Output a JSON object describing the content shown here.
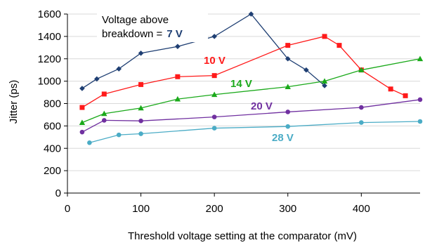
{
  "chart_data": {
    "type": "line",
    "xlabel": "Threshold voltage setting at the comparator (mV)",
    "ylabel": "Jitter (ps)",
    "xlim": [
      0,
      480
    ],
    "ylim": [
      0,
      1600
    ],
    "x_ticks": [
      "0",
      "100",
      "200",
      "300",
      "400"
    ],
    "y_ticks": [
      "0",
      "200",
      "400",
      "600",
      "800",
      "1000",
      "1200",
      "1400",
      "1600"
    ],
    "grid": true,
    "legend": {
      "line1": "Voltage above",
      "line2": "breakdown =",
      "line2_value": "7 V"
    },
    "series": [
      {
        "name": "7 V",
        "label": "7 V",
        "color": "#1f3f73",
        "marker": "diamond",
        "x": [
          20,
          40,
          70,
          100,
          150,
          200,
          250,
          300,
          325,
          350
        ],
        "y": [
          935,
          1020,
          1110,
          1250,
          1310,
          1400,
          1600,
          1200,
          1100,
          960
        ]
      },
      {
        "name": "10 V",
        "label": "10 V",
        "color": "#ff1a1a",
        "marker": "square",
        "x": [
          20,
          50,
          100,
          150,
          200,
          300,
          350,
          370,
          400,
          440,
          460
        ],
        "y": [
          765,
          885,
          970,
          1040,
          1050,
          1320,
          1400,
          1320,
          1100,
          930,
          870
        ]
      },
      {
        "name": "14 V",
        "label": "14 V",
        "color": "#1aa91a",
        "marker": "triangle",
        "x": [
          20,
          50,
          100,
          150,
          200,
          300,
          350,
          400,
          480
        ],
        "y": [
          630,
          710,
          760,
          840,
          880,
          950,
          1000,
          1100,
          1200
        ]
      },
      {
        "name": "20 V",
        "label": "20 V",
        "color": "#7030a0",
        "marker": "circle",
        "x": [
          20,
          50,
          100,
          200,
          300,
          400,
          480
        ],
        "y": [
          545,
          650,
          645,
          680,
          725,
          765,
          835
        ]
      },
      {
        "name": "28 V",
        "label": "28 V",
        "color": "#4bacc6",
        "marker": "circle",
        "x": [
          30,
          70,
          100,
          200,
          300,
          400,
          480
        ],
        "y": [
          450,
          520,
          530,
          580,
          595,
          630,
          640
        ]
      }
    ]
  }
}
